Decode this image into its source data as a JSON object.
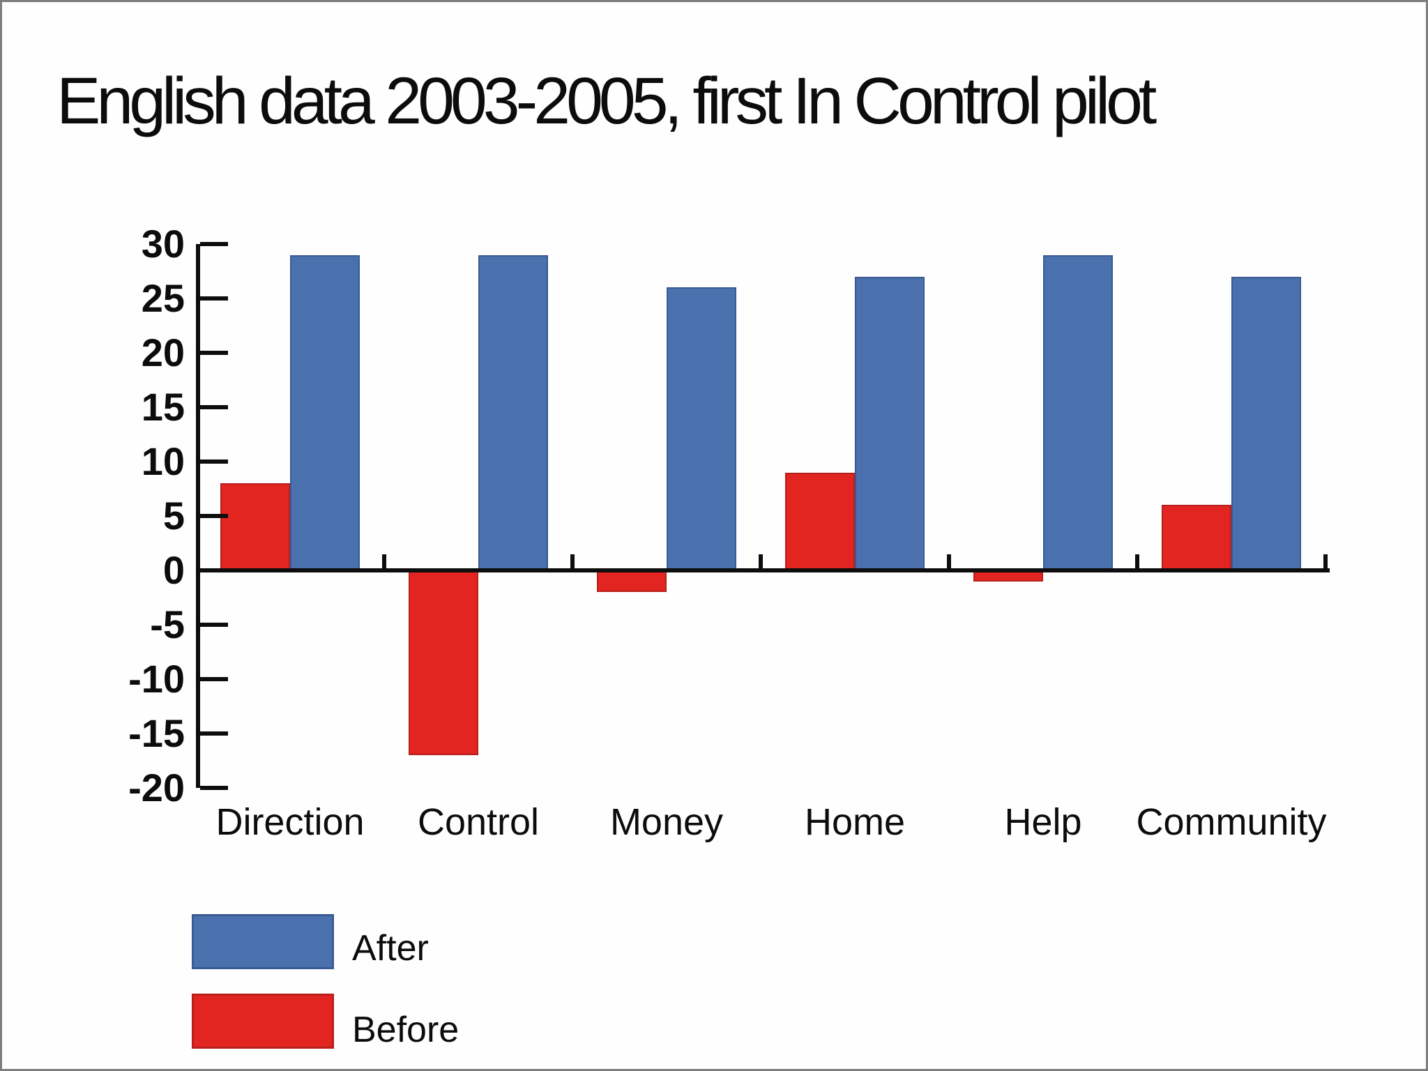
{
  "title": "English data 2003-2005, first In Control pilot",
  "chart_data": {
    "type": "bar",
    "title": "English data 2003-2005, first In Control pilot",
    "categories": [
      "Direction",
      "Control",
      "Money",
      "Home",
      "Help",
      "Community"
    ],
    "series": [
      {
        "name": "Before",
        "color": "#e32522",
        "border_color": "#b71f1c",
        "values": [
          8,
          -17,
          -2,
          9,
          -1,
          6
        ]
      },
      {
        "name": "After",
        "color": "#4a70ad",
        "border_color": "#3a5a94",
        "values": [
          29,
          29,
          26,
          27,
          29,
          27
        ]
      }
    ],
    "ylim": [
      -20,
      30
    ],
    "ytick_step": 5,
    "yticks": [
      30,
      25,
      20,
      15,
      10,
      5,
      0,
      -5,
      -10,
      -15,
      -20
    ],
    "grid": false,
    "axis_color": "#0d0d0d",
    "legend_position": "bottom-left",
    "legend": [
      {
        "label": "After",
        "color": "#4a70ad",
        "border_color": "#3a5a94"
      },
      {
        "label": "Before",
        "color": "#e32522",
        "border_color": "#b71f1c"
      }
    ]
  }
}
